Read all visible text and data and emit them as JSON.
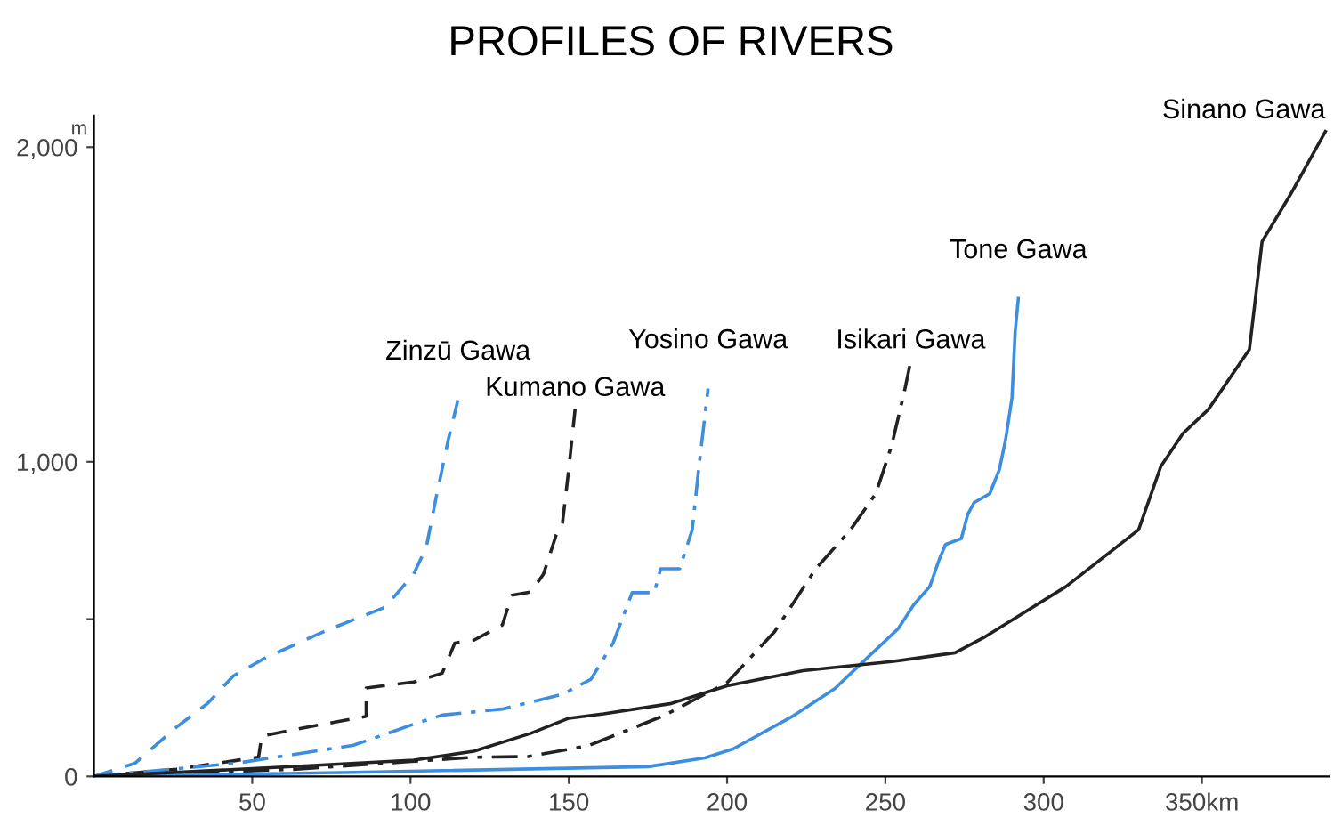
{
  "chart_data": {
    "type": "line",
    "title": "PROFILES OF RIVERS",
    "ylabel": "m",
    "xlim": [
      0,
      390
    ],
    "ylim": [
      0,
      2100
    ],
    "xticks": [
      50,
      100,
      150,
      200,
      250,
      300,
      {
        "value": 350,
        "label": "350km"
      }
    ],
    "yticks": [
      0,
      {
        "value": 500,
        "label": null
      },
      {
        "value": 1000,
        "label": "1,000"
      },
      {
        "value": 2000,
        "label": "2,000"
      }
    ],
    "grid": false,
    "legend": false,
    "marker": "none",
    "series": [
      {
        "name": "Zinzū Gawa",
        "color": "#3d8ee0",
        "line_style": "dashed",
        "x": [
          0,
          13,
          26,
          36,
          44,
          54,
          73,
          92,
          101,
          105,
          108,
          112,
          115
        ],
        "values": [
          0,
          42,
          156,
          233,
          319,
          376,
          462,
          538,
          643,
          729,
          882,
          1073,
          1197
        ]
      },
      {
        "name": "Kumano Gawa",
        "color": "#222222",
        "line_style": "dashed",
        "x": [
          0,
          26,
          52,
          53,
          67,
          86,
          86,
          101,
          110,
          114,
          120,
          129,
          132,
          138,
          142,
          146,
          148,
          150,
          152
        ],
        "values": [
          0,
          23,
          61,
          128,
          156,
          191,
          281,
          300,
          328,
          424,
          433,
          481,
          576,
          586,
          643,
          767,
          805,
          977,
          1168
        ]
      },
      {
        "name": "Yosino Gawa",
        "color": "#3d8ee0",
        "line_style": "dashdot",
        "x": [
          0,
          45,
          82,
          101,
          110,
          129,
          148,
          157,
          164,
          170,
          177,
          179,
          185,
          189,
          191,
          194
        ],
        "values": [
          0,
          42,
          99,
          166,
          195,
          214,
          261,
          309,
          424,
          584,
          584,
          660,
          660,
          784,
          975,
          1233
        ]
      },
      {
        "name": "Isikari Gawa",
        "color": "#222222",
        "line_style": "dashdot",
        "x": [
          0,
          64,
          120,
          137,
          156,
          180,
          200,
          215,
          228,
          239,
          247,
          252,
          256,
          258
        ],
        "values": [
          0,
          23,
          61,
          63,
          97,
          193,
          298,
          460,
          660,
          784,
          899,
          1052,
          1223,
          1319
        ]
      },
      {
        "name": "Tone Gawa",
        "color": "#3d8ee0",
        "line_style": "solid",
        "x": [
          0,
          82,
          175,
          193,
          202,
          221,
          234,
          245,
          254,
          259,
          264,
          267,
          269,
          274,
          276,
          278,
          283,
          286,
          288,
          290,
          291,
          292
        ],
        "values": [
          0,
          13,
          31,
          59,
          88,
          193,
          279,
          384,
          469,
          546,
          603,
          689,
          737,
          756,
          832,
          870,
          899,
          975,
          1071,
          1204,
          1414,
          1519
        ]
      },
      {
        "name": "Sinano Gawa",
        "color": "#222222",
        "line_style": "solid",
        "x": [
          0,
          64,
          101,
          120,
          138,
          150,
          161,
          182,
          200,
          224,
          252,
          272,
          281,
          307,
          330,
          337,
          344,
          352,
          365,
          369,
          378,
          389
        ],
        "values": [
          0,
          32,
          52,
          80,
          137,
          185,
          199,
          231,
          288,
          336,
          365,
          393,
          441,
          603,
          784,
          985,
          1090,
          1166,
          1357,
          1700,
          1850,
          2050
        ]
      }
    ]
  }
}
